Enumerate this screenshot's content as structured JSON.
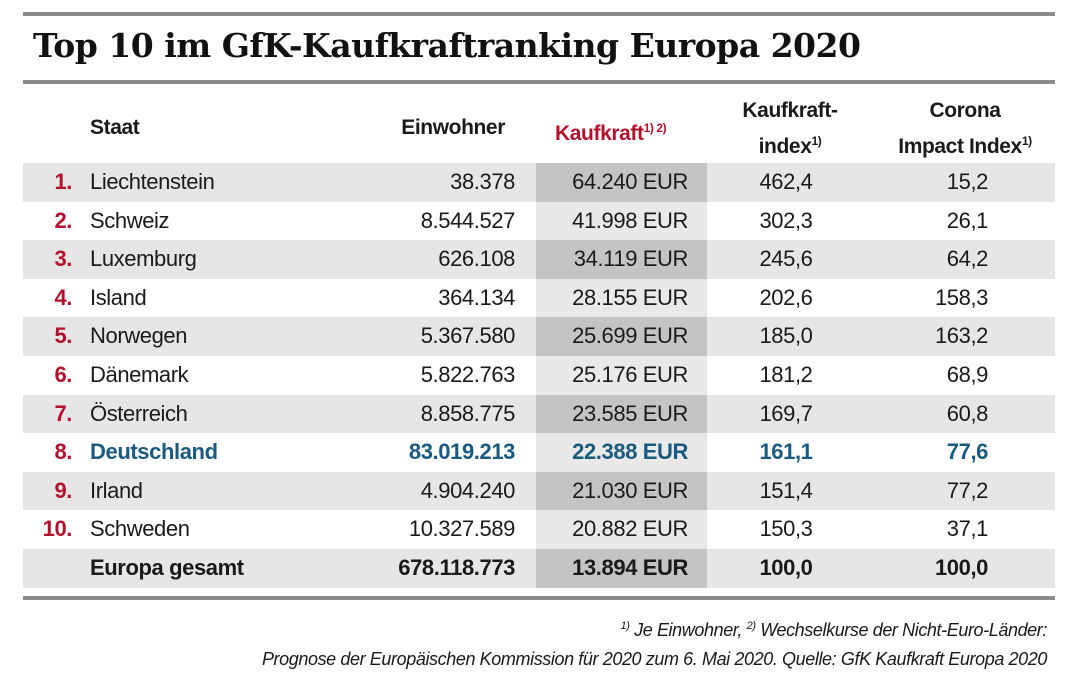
{
  "title": "Top 10 im GfK-Kaufkraftranking Europa 2020",
  "colors": {
    "rank_red": "#b3112b",
    "highlight_blue": "#1a5a80",
    "header_accent": "#b3112b",
    "row_gray": "#e6e6e6",
    "column_shade": "#c4c4c4"
  },
  "chart_data": {
    "type": "table",
    "title": "Top 10 im GfK-Kaufkraftranking Europa 2020",
    "columns": [
      {
        "label": "Staat",
        "sup": ""
      },
      {
        "label": "Einwohner",
        "sup": ""
      },
      {
        "label": "Kaufkraft",
        "sup": "1) 2)"
      },
      {
        "label_line1": "Kaufkraft-",
        "label_line2": "index",
        "sup": "1)"
      },
      {
        "label_line1": "Corona",
        "label_line2": "Impact Index",
        "sup": "1)"
      }
    ],
    "rows": [
      {
        "rank": "1.",
        "staat": "Liechtenstein",
        "einwohner": "38.378",
        "kaufkraft": "64.240 EUR",
        "kaufkraftindex": "462,4",
        "corona_impact_index": "15,2"
      },
      {
        "rank": "2.",
        "staat": "Schweiz",
        "einwohner": "8.544.527",
        "kaufkraft": "41.998 EUR",
        "kaufkraftindex": "302,3",
        "corona_impact_index": "26,1"
      },
      {
        "rank": "3.",
        "staat": "Luxemburg",
        "einwohner": "626.108",
        "kaufkraft": "34.119 EUR",
        "kaufkraftindex": "245,6",
        "corona_impact_index": "64,2"
      },
      {
        "rank": "4.",
        "staat": "Island",
        "einwohner": "364.134",
        "kaufkraft": "28.155 EUR",
        "kaufkraftindex": "202,6",
        "corona_impact_index": "158,3"
      },
      {
        "rank": "5.",
        "staat": "Norwegen",
        "einwohner": "5.367.580",
        "kaufkraft": "25.699 EUR",
        "kaufkraftindex": "185,0",
        "corona_impact_index": "163,2"
      },
      {
        "rank": "6.",
        "staat": "Dänemark",
        "einwohner": "5.822.763",
        "kaufkraft": "25.176 EUR",
        "kaufkraftindex": "181,2",
        "corona_impact_index": "68,9"
      },
      {
        "rank": "7.",
        "staat": "Österreich",
        "einwohner": "8.858.775",
        "kaufkraft": "23.585 EUR",
        "kaufkraftindex": "169,7",
        "corona_impact_index": "60,8"
      },
      {
        "rank": "8.",
        "staat": "Deutschland",
        "einwohner": "83.019.213",
        "kaufkraft": "22.388 EUR",
        "kaufkraftindex": "161,1",
        "corona_impact_index": "77,6",
        "highlight": true
      },
      {
        "rank": "9.",
        "staat": "Irland",
        "einwohner": "4.904.240",
        "kaufkraft": "21.030 EUR",
        "kaufkraftindex": "151,4",
        "corona_impact_index": "77,2"
      },
      {
        "rank": "10.",
        "staat": "Schweden",
        "einwohner": "10.327.589",
        "kaufkraft": "20.882 EUR",
        "kaufkraftindex": "150,3",
        "corona_impact_index": "37,1"
      },
      {
        "rank": "",
        "staat": "Europa gesamt",
        "einwohner": "678.118.773",
        "kaufkraft": "13.894 EUR",
        "kaufkraftindex": "100,0",
        "corona_impact_index": "100,0",
        "total": true
      }
    ]
  },
  "footnote": {
    "sup1": "1)",
    "text1": " Je Einwohner, ",
    "sup2": "2)",
    "text2": " Wechselkurse der Nicht-Euro-Länder:",
    "line2": "Prognose der Europäischen Kommission für 2020 zum 6. Mai 2020. Quelle: GfK Kaufkraft Europa 2020"
  }
}
